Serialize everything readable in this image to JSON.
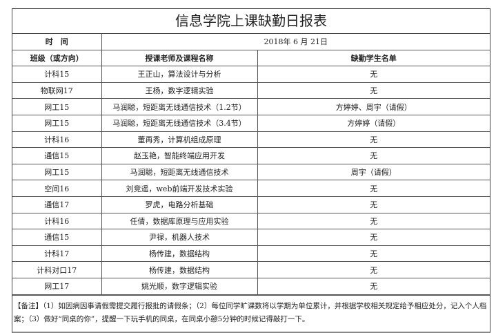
{
  "title": "信息学院上课缺勤日报表",
  "time_label": "时　间",
  "date": "2018年 6 月 21日",
  "headers": [
    "班级（或方向）",
    "授课老师及课程名称",
    "缺勤学生名单"
  ],
  "rows": [
    [
      "计科15",
      "王正山，算法设计与分析",
      "无"
    ],
    [
      "物联网17",
      "王杨，数字逻辑实验",
      "无"
    ],
    [
      "网工15",
      "马润聪，短距离无线通信技术（1.2节）",
      "方婷婷、周宇（请假）"
    ],
    [
      "网工15",
      "马润聪，短距离无线通信技术（3.4节）",
      "方婷婷（请假）"
    ],
    [
      "计科16",
      "董再秀，计算机组成原理",
      "无"
    ],
    [
      "通信15",
      "赵玉艳，智能终端应用开发",
      "无"
    ],
    [
      "网工15",
      "马润聪，短距离无线通信技术",
      "周宇（请假）"
    ],
    [
      "空间16",
      "刘竞遥，web前端开发技术实验",
      "无"
    ],
    [
      "通信17",
      "罗虎，电路分析基础",
      "无"
    ],
    [
      "计科16",
      "任倩，数据库原理与应用实验",
      "无"
    ],
    [
      "通信15",
      "尹禄，机器人技术",
      "无"
    ],
    [
      "计科17",
      "杨传建，数据结构",
      "无"
    ],
    [
      "计科对口17",
      "杨传建，数据结构",
      "无"
    ],
    [
      "网工17",
      "姚光顺，数字逻辑实验",
      "无"
    ]
  ],
  "note": "【备注】（1）如因病因事请假需提交履行报批的请假条；（2）每位同学旷课数将以学期为单位累计，并根据学校相关规定给予相应处分，记入个人档案；（3）做好“同桌的你”，提醒一下玩手机的同桌，在同桌小憩5分钟的时候记得敲打一下。"
}
